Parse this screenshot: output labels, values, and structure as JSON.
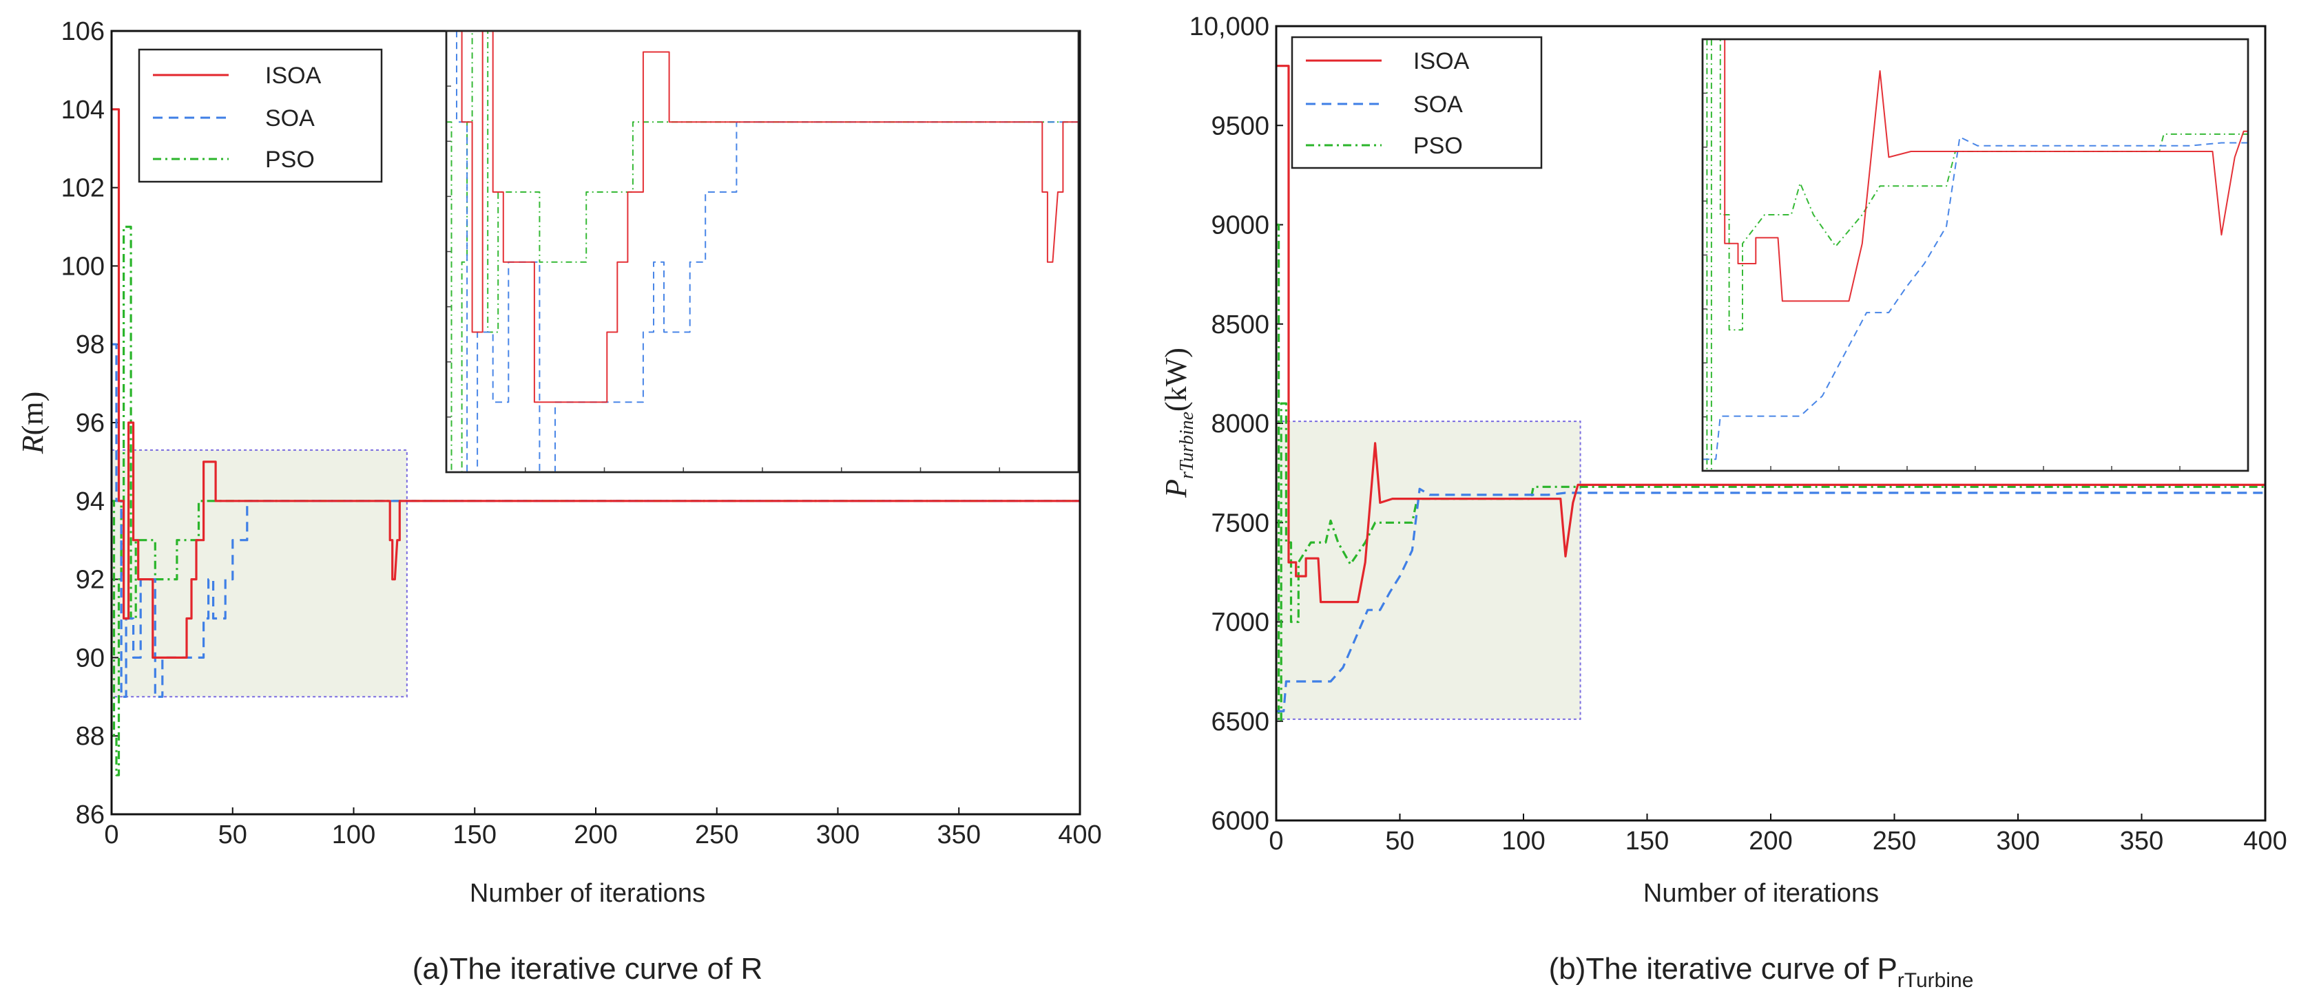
{
  "colors": {
    "ISOA": "#e3262c",
    "SOA": "#3f7fe6",
    "PSO": "#2bb52b",
    "shade": "#eef1e6",
    "shade_border": "#7a6ce0"
  },
  "chart_data": [
    {
      "type": "line",
      "panel": "a",
      "caption": "(a)The iterative curve of R",
      "xlabel": "Number of iterations",
      "ylabel_main": "R",
      "ylabel_unit": "(m)",
      "xlim": [
        0,
        400
      ],
      "ylim": [
        86,
        106
      ],
      "xticks": [
        "0",
        "50",
        "100",
        "150",
        "200",
        "250",
        "300",
        "350",
        "400"
      ],
      "yticks": [
        "86",
        "88",
        "90",
        "92",
        "94",
        "96",
        "98",
        "100",
        "102",
        "104",
        "106"
      ],
      "legend_position": "top-left",
      "zoom_region": {
        "x": [
          0,
          122
        ],
        "y": [
          89,
          95.3
        ]
      },
      "series": [
        {
          "name": "ISOA",
          "style": "solid",
          "points": [
            [
              0,
              104
            ],
            [
              3,
              104
            ],
            [
              3,
              94
            ],
            [
              5,
              94
            ],
            [
              5,
              91
            ],
            [
              7,
              91
            ],
            [
              7,
              96
            ],
            [
              9,
              96
            ],
            [
              9,
              93
            ],
            [
              11,
              93
            ],
            [
              11,
              92
            ],
            [
              17,
              92
            ],
            [
              17,
              90
            ],
            [
              31,
              90
            ],
            [
              31,
              91
            ],
            [
              33,
              91
            ],
            [
              33,
              92
            ],
            [
              35,
              92
            ],
            [
              35,
              93
            ],
            [
              38,
              93
            ],
            [
              38,
              95
            ],
            [
              43,
              95
            ],
            [
              43,
              94
            ],
            [
              115,
              94
            ],
            [
              115,
              93
            ],
            [
              116,
              93
            ],
            [
              116,
              92
            ],
            [
              117,
              92
            ],
            [
              118,
              93
            ],
            [
              119,
              93
            ],
            [
              119,
              94
            ],
            [
              400,
              94
            ]
          ]
        },
        {
          "name": "SOA",
          "style": "dashed",
          "points": [
            [
              0,
              98
            ],
            [
              2,
              98
            ],
            [
              2,
              94
            ],
            [
              4,
              94
            ],
            [
              4,
              89
            ],
            [
              6,
              89
            ],
            [
              6,
              91
            ],
            [
              9,
              91
            ],
            [
              9,
              90
            ],
            [
              12,
              90
            ],
            [
              12,
              92
            ],
            [
              18,
              92
            ],
            [
              18,
              89
            ],
            [
              21,
              89
            ],
            [
              21,
              90
            ],
            [
              38,
              90
            ],
            [
              38,
              91
            ],
            [
              40,
              91
            ],
            [
              40,
              92
            ],
            [
              42,
              92
            ],
            [
              42,
              91
            ],
            [
              47,
              91
            ],
            [
              47,
              92
            ],
            [
              50,
              92
            ],
            [
              50,
              93
            ],
            [
              56,
              93
            ],
            [
              56,
              94
            ],
            [
              400,
              94
            ]
          ]
        },
        {
          "name": "PSO",
          "style": "dashdot",
          "points": [
            [
              0,
              94
            ],
            [
              1,
              94
            ],
            [
              1,
              88
            ],
            [
              2,
              88
            ],
            [
              2,
              87
            ],
            [
              3,
              87
            ],
            [
              3,
              92
            ],
            [
              4,
              92
            ],
            [
              4,
              94
            ],
            [
              5,
              94
            ],
            [
              5,
              101
            ],
            [
              8,
              101
            ],
            [
              8,
              91
            ],
            [
              10,
              91
            ],
            [
              10,
              93
            ],
            [
              18,
              93
            ],
            [
              18,
              92
            ],
            [
              27,
              92
            ],
            [
              27,
              93
            ],
            [
              36,
              93
            ],
            [
              36,
              94
            ],
            [
              400,
              94
            ]
          ]
        }
      ]
    },
    {
      "type": "line",
      "panel": "b",
      "caption_main": "(b)The iterative curve of P",
      "caption_sub": "rTurbine",
      "xlabel": "Number of iterations",
      "ylabel_main": "P",
      "ylabel_sub": "rTurbine",
      "ylabel_unit": "(kW)",
      "xlim": [
        0,
        400
      ],
      "ylim": [
        6000,
        10000
      ],
      "xticks": [
        "0",
        "50",
        "100",
        "150",
        "200",
        "250",
        "300",
        "350",
        "400"
      ],
      "yticks": [
        "6000",
        "6500",
        "7000",
        "7500",
        "8000",
        "8500",
        "9000",
        "9500",
        "10,000"
      ],
      "legend_position": "top-left",
      "zoom_region": {
        "x": [
          0,
          123
        ],
        "y": [
          6510,
          8010
        ]
      },
      "series": [
        {
          "name": "ISOA",
          "style": "solid",
          "points": [
            [
              0,
              9800
            ],
            [
              5,
              9800
            ],
            [
              5,
              7300
            ],
            [
              8,
              7300
            ],
            [
              8,
              7230
            ],
            [
              12,
              7230
            ],
            [
              12,
              7320
            ],
            [
              17,
              7320
            ],
            [
              18,
              7100
            ],
            [
              33,
              7100
            ],
            [
              36,
              7300
            ],
            [
              40,
              7900
            ],
            [
              42,
              7600
            ],
            [
              47,
              7620
            ],
            [
              60,
              7620
            ],
            [
              115,
              7620
            ],
            [
              117,
              7330
            ],
            [
              120,
              7600
            ],
            [
              122,
              7690
            ],
            [
              400,
              7690
            ]
          ]
        },
        {
          "name": "SOA",
          "style": "dashed",
          "points": [
            [
              0,
              6550
            ],
            [
              3,
              6550
            ],
            [
              4,
              6700
            ],
            [
              22,
              6700
            ],
            [
              27,
              6770
            ],
            [
              37,
              7060
            ],
            [
              42,
              7060
            ],
            [
              46,
              7150
            ],
            [
              50,
              7230
            ],
            [
              55,
              7360
            ],
            [
              58,
              7670
            ],
            [
              62,
              7640
            ],
            [
              110,
              7640
            ],
            [
              117,
              7650
            ],
            [
              400,
              7650
            ]
          ]
        },
        {
          "name": "PSO",
          "style": "dashdot",
          "points": [
            [
              0,
              9000
            ],
            [
              1,
              9000
            ],
            [
              1,
              6500
            ],
            [
              2,
              6500
            ],
            [
              2,
              8100
            ],
            [
              4,
              8100
            ],
            [
              4,
              7400
            ],
            [
              6,
              7400
            ],
            [
              6,
              7000
            ],
            [
              9,
              7000
            ],
            [
              9,
              7300
            ],
            [
              14,
              7400
            ],
            [
              20,
              7400
            ],
            [
              22,
              7510
            ],
            [
              25,
              7400
            ],
            [
              30,
              7290
            ],
            [
              36,
              7400
            ],
            [
              40,
              7500
            ],
            [
              55,
              7500
            ],
            [
              57,
              7620
            ],
            [
              103,
              7620
            ],
            [
              104,
              7680
            ],
            [
              400,
              7680
            ]
          ]
        }
      ]
    }
  ]
}
